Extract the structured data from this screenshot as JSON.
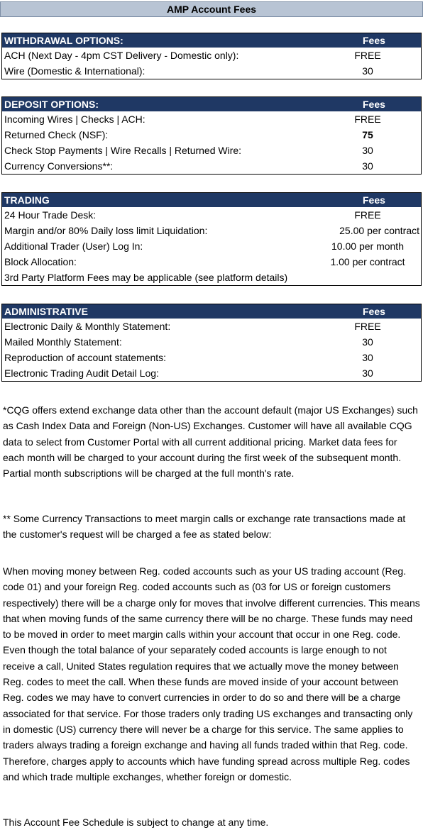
{
  "title": "AMP Account Fees",
  "sections": [
    {
      "header": "WITHDRAWAL OPTIONS:",
      "fees_label": "Fees",
      "rows": [
        {
          "label": "ACH (Next Day - 4pm CST Delivery - Domestic only):",
          "value": "FREE"
        },
        {
          "label": "Wire (Domestic & International):",
          "value": "30"
        }
      ]
    },
    {
      "header": "DEPOSIT OPTIONS:",
      "fees_label": "Fees",
      "rows": [
        {
          "label": "Incoming Wires | Checks | ACH:",
          "value": "FREE"
        },
        {
          "label": "Returned Check (NSF):",
          "value": "75"
        },
        {
          "label": "Check Stop Payments | Wire Recalls | Returned Wire:",
          "value": "30"
        },
        {
          "label": "Currency Conversions**:",
          "value": "30"
        }
      ]
    },
    {
      "header": "TRADING",
      "fees_label": "Fees",
      "rows": [
        {
          "label": "24 Hour Trade Desk:",
          "value": "FREE"
        },
        {
          "label": "Margin and/or 80% Daily loss limit Liquidation:",
          "value": "25.00 per contract"
        },
        {
          "label": "Additional Trader (User) Log In:",
          "value": "10.00 per month"
        },
        {
          "label": "Block Allocation:",
          "value": "1.00 per contract"
        },
        {
          "label": "3rd Party Platform Fees may be applicable (see platform details)",
          "value": ""
        }
      ]
    },
    {
      "header": "ADMINISTRATIVE",
      "fees_label": "Fees",
      "rows": [
        {
          "label": "Electronic Daily & Monthly Statement:",
          "value": "FREE"
        },
        {
          "label": "Mailed Monthly Statement:",
          "value": "30"
        },
        {
          "label": "Reproduction of account statements:",
          "value": "30"
        },
        {
          "label": "Electronic Trading Audit Detail Log:",
          "value": "30"
        }
      ]
    }
  ],
  "notes": {
    "cqg": "*CQG offers extend exchange data other than the account default (major US Exchanges) such as Cash Index Data and Foreign (Non-US) Exchanges. Customer will have all available CQG data to select from Customer Portal with all current additional pricing. Market data fees for each month will be charged to your account during the first week of the subsequent month. Partial month subscriptions will be charged at the full month's rate.",
    "currency": "** Some Currency Transactions to meet margin calls or exchange rate transactions made at the customer's request will be charged a fee as stated below:",
    "regcodes": "When moving money between Reg. coded accounts such as your US trading account (Reg. code 01) and your foreign Reg. coded accounts such as (03 for US or foreign customers respectively) there will be a charge only for moves that involve different currencies. This means that when moving funds of the same currency there will be no charge. These funds may need to be moved in order to meet margin calls within your account that occur in one Reg. code. Even though the total balance of your separately coded accounts is large enough to not receive a call, United States regulation requires that we actually move the money between Reg. codes to meet the call. When these funds are moved inside of your account between Reg. codes we may have to convert currencies in order to do so and there will be a charge associated for that service. For those traders only trading US exchanges and transacting only in domestic (US) currency there will never be a charge for this service. The same applies to traders always trading a foreign exchange and having all funds traded within that Reg. code. Therefore, charges apply to accounts which have funding spread across multiple Reg. codes and which trade multiple exchanges, whether foreign or domestic.",
    "disclaimer": "This Account Fee Schedule is subject to change at any time."
  }
}
